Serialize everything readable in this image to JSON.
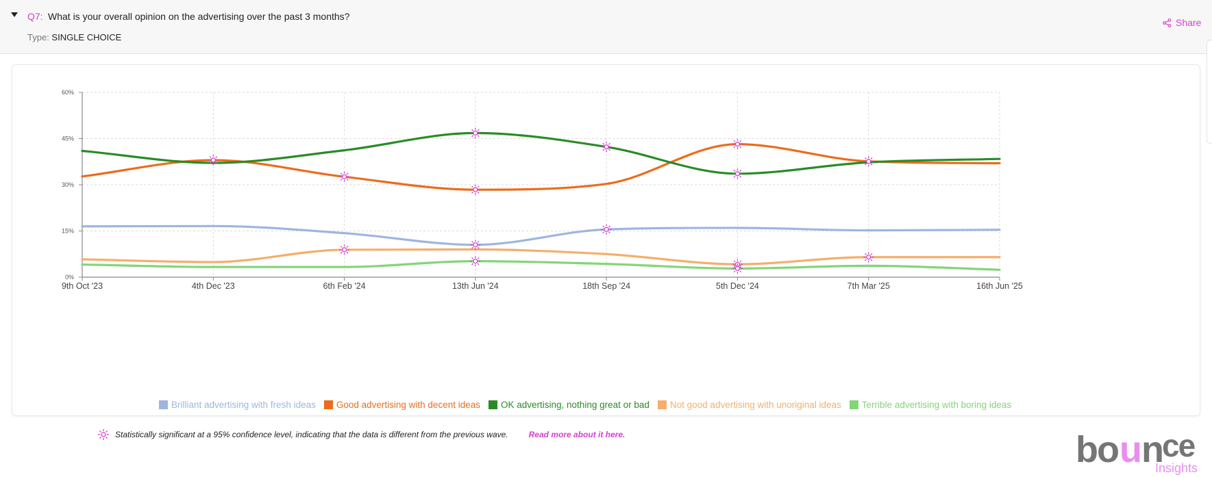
{
  "question": {
    "number": "Q7:",
    "text": "What is your overall opinion on the advertising over the past 3 months?",
    "type_label": "Type:",
    "type_value": "SINGLE CHOICE"
  },
  "share_label": "Share",
  "colors": {
    "accent": "#d63fd0"
  },
  "chart_data": {
    "type": "line",
    "x": [
      "9th Oct '23",
      "4th Dec '23",
      "6th Feb '24",
      "13th Jun '24",
      "18th Sep '24",
      "5th Dec '24",
      "7th Mar '25",
      "16th Jun '25"
    ],
    "y_ticks": [
      "0%",
      "15%",
      "30%",
      "45%",
      "60%"
    ],
    "ylim": [
      0,
      60
    ],
    "grid": true,
    "legend_position": "bottom",
    "series": [
      {
        "name": "Brilliant advertising with fresh ideas",
        "color": "#9db6e0",
        "values": [
          16.5,
          16.6,
          14.3,
          10.5,
          15.5,
          16.0,
          15.2,
          15.4
        ],
        "significant": [
          false,
          false,
          false,
          true,
          true,
          false,
          false,
          false
        ]
      },
      {
        "name": "Good advertising with decent ideas",
        "color": "#ec6c1b",
        "values": [
          32.7,
          38.0,
          32.6,
          28.4,
          30.3,
          43.2,
          37.6,
          37.0
        ],
        "significant": [
          false,
          true,
          true,
          true,
          false,
          true,
          true,
          false
        ]
      },
      {
        "name": "OK advertising, nothing great or bad",
        "color": "#2a8b27",
        "values": [
          41.0,
          37.1,
          41.2,
          46.8,
          42.3,
          33.6,
          37.3,
          38.4
        ],
        "significant": [
          false,
          false,
          false,
          true,
          true,
          true,
          false,
          false
        ]
      },
      {
        "name": "Not good advertising with unoriginal ideas",
        "color": "#f5ae6b",
        "values": [
          5.8,
          4.9,
          8.9,
          9.0,
          7.5,
          4.2,
          6.5,
          6.5
        ],
        "significant": [
          false,
          false,
          true,
          false,
          false,
          true,
          true,
          false
        ]
      },
      {
        "name": "Terrible advertising with boring ideas",
        "color": "#84d478",
        "values": [
          4.1,
          3.3,
          3.3,
          5.2,
          4.3,
          2.8,
          3.7,
          2.4
        ],
        "significant": [
          false,
          false,
          false,
          true,
          false,
          true,
          false,
          false
        ]
      }
    ]
  },
  "note": {
    "text": "Statistically significant at a 95% confidence level, indicating that the data is different from the previous wave.",
    "link": "Read more about it here."
  },
  "logo": {
    "word_gray1": "bo",
    "word_pink": "u",
    "word_gray2": "n",
    "word_gray3": "ce",
    "sub": "Insights"
  }
}
